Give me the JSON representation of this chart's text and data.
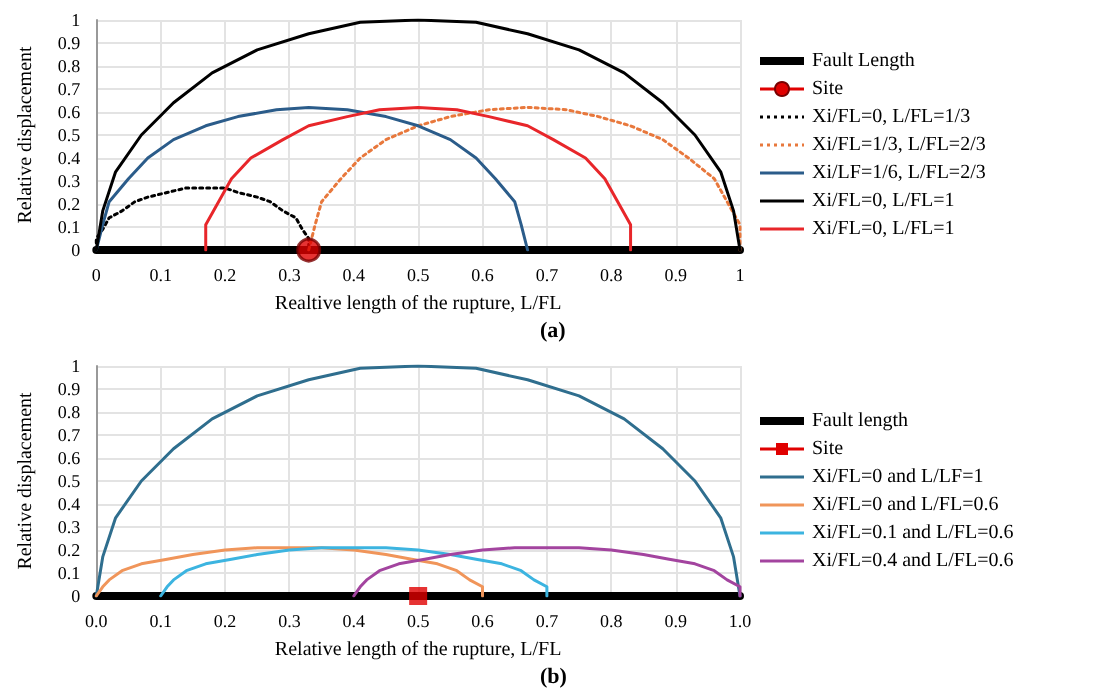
{
  "chart_data": [
    {
      "type": "line",
      "xlabel": "Realtive length of the rupture, L/FL",
      "ylabel": "Relative displacement",
      "annotations": [
        "(a)"
      ],
      "xlim": [
        0,
        1
      ],
      "ylim": [
        0,
        1
      ],
      "xticks": [
        0,
        0.1,
        0.2,
        0.3,
        0.4,
        0.5,
        0.6,
        0.7,
        0.8,
        0.9,
        1
      ],
      "yticks": [
        0,
        0.1,
        0.2,
        0.3,
        0.4,
        0.5,
        0.6,
        0.7,
        0.8,
        0.9,
        1
      ],
      "grid": true,
      "legend": "right",
      "marker": "none",
      "series": [
        {
          "name": "Fault Length",
          "color": "#000000",
          "x": [
            0,
            1
          ],
          "values": [
            0,
            0
          ]
        },
        {
          "name": "Site",
          "type": "scatter",
          "marker": "circle",
          "color": "#e00000",
          "x": [
            0.33
          ],
          "values": [
            0
          ]
        },
        {
          "name": "Xi/FL=0, L/FL=1/3",
          "color": "#000000",
          "line_style": "dotted",
          "x": [
            0,
            0,
            0.01,
            0.02,
            0.04,
            0.06,
            0.08,
            0.11,
            0.14,
            0.17,
            0.2,
            0.22,
            0.25,
            0.27,
            0.29,
            0.31,
            0.32,
            0.33,
            0.33
          ],
          "values": [
            0,
            0.05,
            0.09,
            0.14,
            0.17,
            0.21,
            0.23,
            0.25,
            0.27,
            0.27,
            0.27,
            0.25,
            0.23,
            0.21,
            0.17,
            0.14,
            0.09,
            0.05,
            0
          ]
        },
        {
          "name": "Xi/FL=1/3, L/FL=2/3",
          "color": "#e8783c",
          "line_style": "dotted",
          "x": [
            0.33,
            0.34,
            0.35,
            0.38,
            0.41,
            0.45,
            0.5,
            0.55,
            0.61,
            0.67,
            0.73,
            0.78,
            0.83,
            0.88,
            0.92,
            0.96,
            0.98,
            1,
            1
          ],
          "values": [
            0,
            0.11,
            0.21,
            0.31,
            0.4,
            0.48,
            0.54,
            0.58,
            0.61,
            0.62,
            0.61,
            0.58,
            0.54,
            0.48,
            0.4,
            0.31,
            0.21,
            0.11,
            0
          ]
        },
        {
          "name": "Xi/LF=1/6, L/FL=2/3",
          "color": "#2b5c8a",
          "x": [
            0,
            0.01,
            0.02,
            0.05,
            0.08,
            0.12,
            0.17,
            0.22,
            0.28,
            0.33,
            0.39,
            0.45,
            0.5,
            0.55,
            0.59,
            0.62,
            0.65,
            0.66,
            0.67
          ],
          "values": [
            0,
            0.11,
            0.21,
            0.31,
            0.4,
            0.48,
            0.54,
            0.58,
            0.61,
            0.62,
            0.61,
            0.58,
            0.54,
            0.48,
            0.4,
            0.31,
            0.21,
            0.11,
            0
          ]
        },
        {
          "name": "Xi/FL=0, L/FL=1",
          "color": "#000000",
          "x": [
            0,
            0.01,
            0.03,
            0.07,
            0.12,
            0.18,
            0.25,
            0.33,
            0.41,
            0.5,
            0.59,
            0.67,
            0.75,
            0.82,
            0.88,
            0.93,
            0.97,
            0.99,
            1
          ],
          "values": [
            0,
            0.17,
            0.34,
            0.5,
            0.64,
            0.77,
            0.87,
            0.94,
            0.99,
            1,
            0.99,
            0.94,
            0.87,
            0.77,
            0.64,
            0.5,
            0.34,
            0.17,
            0
          ]
        },
        {
          "name": "Xi/FL=0, L/FL=1",
          "color": "#e8262a",
          "x": [
            0.17,
            0.17,
            0.19,
            0.21,
            0.24,
            0.29,
            0.33,
            0.39,
            0.44,
            0.5,
            0.56,
            0.61,
            0.67,
            0.71,
            0.76,
            0.79,
            0.81,
            0.83,
            0.83
          ],
          "values": [
            0,
            0.11,
            0.21,
            0.31,
            0.4,
            0.48,
            0.54,
            0.58,
            0.61,
            0.62,
            0.61,
            0.58,
            0.54,
            0.48,
            0.4,
            0.31,
            0.21,
            0.11,
            0
          ]
        }
      ]
    },
    {
      "type": "line",
      "xlabel": "Relative length of the rupture, L/FL",
      "ylabel": "Relative displacement",
      "annotations": [
        "(b)"
      ],
      "xlim": [
        0,
        1
      ],
      "ylim": [
        0,
        1
      ],
      "xticks": [
        {
          "value": 0,
          "label": "0.0"
        },
        0.1,
        0.2,
        0.3,
        0.4,
        0.5,
        0.6,
        0.7,
        0.8,
        0.9,
        {
          "value": 1,
          "label": "1.0"
        }
      ],
      "yticks": [
        0,
        0.1,
        0.2,
        0.3,
        0.4,
        0.5,
        0.6,
        0.7,
        0.8,
        0.9,
        1
      ],
      "grid": true,
      "legend": "right",
      "marker": "none",
      "series": [
        {
          "name": "Fault length",
          "color": "#000000",
          "x": [
            0,
            1
          ],
          "values": [
            0,
            0
          ]
        },
        {
          "name": "Site",
          "type": "scatter",
          "marker": "square",
          "color": "#e00000",
          "x": [
            0.5
          ],
          "values": [
            0
          ]
        },
        {
          "name": "Xi/FL=0 and L/LF=1",
          "color": "#2f6e8e",
          "x": [
            0,
            0.01,
            0.03,
            0.07,
            0.12,
            0.18,
            0.25,
            0.33,
            0.41,
            0.5,
            0.59,
            0.67,
            0.75,
            0.82,
            0.88,
            0.93,
            0.97,
            0.99,
            1
          ],
          "values": [
            0,
            0.17,
            0.34,
            0.5,
            0.64,
            0.77,
            0.87,
            0.94,
            0.99,
            1,
            0.99,
            0.94,
            0.87,
            0.77,
            0.64,
            0.5,
            0.34,
            0.17,
            0
          ]
        },
        {
          "name": "Xi/FL=0 and L/FL=0.6",
          "color": "#f0955a",
          "x": [
            0,
            0.01,
            0.02,
            0.04,
            0.07,
            0.11,
            0.15,
            0.2,
            0.25,
            0.3,
            0.35,
            0.4,
            0.45,
            0.49,
            0.53,
            0.56,
            0.58,
            0.6,
            0.6
          ],
          "values": [
            0,
            0.04,
            0.07,
            0.11,
            0.14,
            0.16,
            0.18,
            0.2,
            0.21,
            0.21,
            0.21,
            0.2,
            0.18,
            0.16,
            0.14,
            0.11,
            0.07,
            0.04,
            0
          ]
        },
        {
          "name": "Xi/FL=0.1 and L/FL=0.6",
          "color": "#3cb4e0",
          "x": [
            0.1,
            0.11,
            0.12,
            0.14,
            0.17,
            0.21,
            0.25,
            0.3,
            0.35,
            0.4,
            0.45,
            0.5,
            0.55,
            0.59,
            0.63,
            0.66,
            0.68,
            0.7,
            0.7
          ],
          "values": [
            0,
            0.04,
            0.07,
            0.11,
            0.14,
            0.16,
            0.18,
            0.2,
            0.21,
            0.21,
            0.21,
            0.2,
            0.18,
            0.16,
            0.14,
            0.11,
            0.07,
            0.04,
            0
          ]
        },
        {
          "name": "Xi/FL=0.4 and L/FL=0.6",
          "color": "#a3449f",
          "x": [
            0.4,
            0.41,
            0.42,
            0.44,
            0.47,
            0.51,
            0.55,
            0.6,
            0.65,
            0.7,
            0.75,
            0.8,
            0.85,
            0.89,
            0.93,
            0.96,
            0.98,
            1,
            1
          ],
          "values": [
            0,
            0.04,
            0.07,
            0.11,
            0.14,
            0.16,
            0.18,
            0.2,
            0.21,
            0.21,
            0.21,
            0.2,
            0.18,
            0.16,
            0.14,
            0.11,
            0.07,
            0.04,
            0
          ]
        }
      ]
    }
  ]
}
